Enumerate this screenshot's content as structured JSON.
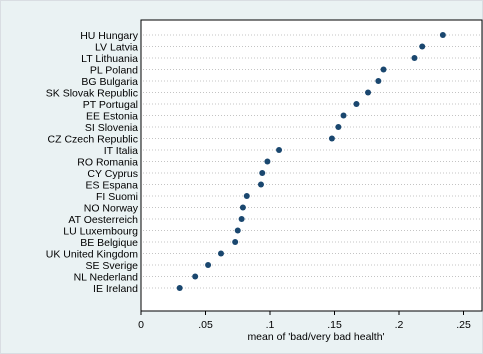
{
  "chart_data": {
    "type": "dot",
    "title": "",
    "xlabel": "mean of 'bad/very bad health'",
    "ylabel": "",
    "xlim": [
      0,
      0.25
    ],
    "x_ticks": [
      0,
      0.05,
      0.1,
      0.15,
      0.2,
      0.25
    ],
    "x_tick_labels": [
      "0",
      ".05",
      ".1",
      ".15",
      ".2",
      ".25"
    ],
    "grid": "dotted horizontal guide lines per category",
    "marker_color": "#1a476f",
    "categories": [
      "HU Hungary",
      "LV Latvia",
      "LT Lithuania",
      "PL Poland",
      "BG Bulgaria",
      "SK Slovak Republic",
      "PT Portugal",
      "EE Estonia",
      "SI Slovenia",
      "CZ Czech Republic",
      "IT Italia",
      "RO Romania",
      "CY Cyprus",
      "ES Espana",
      "FI Suomi",
      "NO Norway",
      "AT Oesterreich",
      "LU Luxembourg",
      "BE Belgique",
      "UK United Kingdom",
      "SE Sverige",
      "NL Nederland",
      "IE Ireland"
    ],
    "values": [
      0.234,
      0.218,
      0.212,
      0.188,
      0.184,
      0.176,
      0.167,
      0.157,
      0.153,
      0.148,
      0.107,
      0.098,
      0.094,
      0.093,
      0.082,
      0.079,
      0.078,
      0.075,
      0.073,
      0.062,
      0.052,
      0.042,
      0.03
    ]
  }
}
